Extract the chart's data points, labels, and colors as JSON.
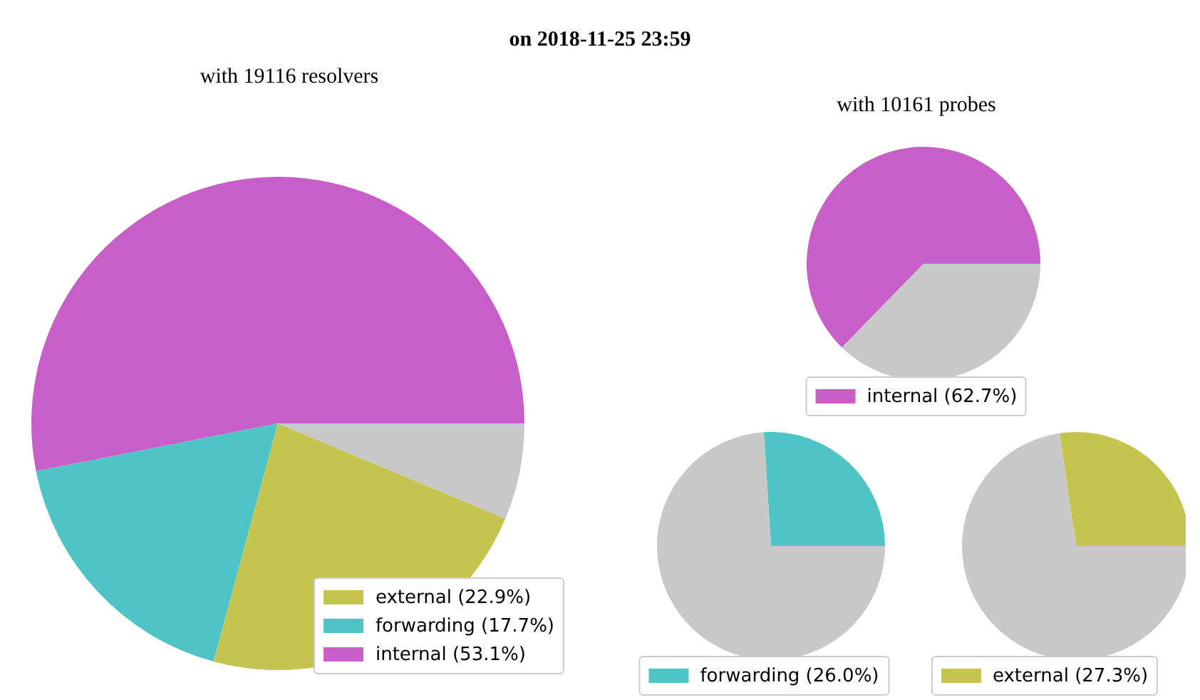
{
  "chart_data": [
    {
      "type": "pie",
      "title": "on 2018-11-25 23:59",
      "subtitle": "with 19116 resolvers",
      "categories": [
        "internal (53.1%)",
        "forwarding (17.7%)",
        "external (22.9%)",
        null
      ],
      "values": [
        53.1,
        17.7,
        22.9,
        6.3
      ],
      "colors": [
        "#c85ec8",
        "#4fc4c4",
        "#c4c44f",
        "#c8c8c8"
      ],
      "legend": "bottom right"
    },
    {
      "type": "pie",
      "subtitle": "with 10161 probes",
      "categories": [
        "internal (62.7%)",
        null
      ],
      "values": [
        62.7,
        37.3
      ],
      "colors": [
        "#c85ec8",
        "#c8c8c8"
      ],
      "legend": "bottom"
    },
    {
      "type": "pie",
      "categories": [
        "forwarding (26.0%)",
        null
      ],
      "values": [
        26.0,
        74.0
      ],
      "colors": [
        "#4fc4c4",
        "#c8c8c8"
      ],
      "legend": "bottom"
    },
    {
      "type": "pie",
      "categories": [
        "external (27.3%)",
        null
      ],
      "values": [
        27.3,
        72.7
      ],
      "colors": [
        "#c4c44f",
        "#c8c8c8"
      ],
      "legend": "bottom"
    }
  ]
}
